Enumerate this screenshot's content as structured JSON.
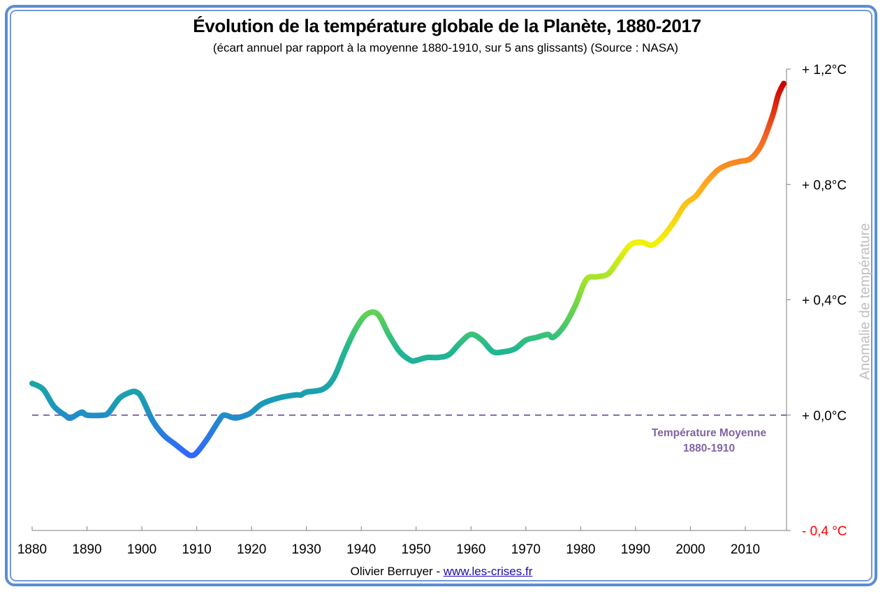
{
  "chart_data": {
    "type": "line",
    "title": "Évolution de la température globale de la Planète, 1880-2017",
    "subtitle": "(écart annuel par rapport à la moyenne 1880-1910, sur 5 ans glissants) (Source : NASA)",
    "xlabel": "",
    "ylabel": "Anomalie de température",
    "xlim": [
      1880,
      2017
    ],
    "ylim": [
      -0.4,
      1.2
    ],
    "grid": false,
    "x_ticks": [
      1880,
      1890,
      1900,
      1910,
      1920,
      1930,
      1940,
      1950,
      1960,
      1970,
      1980,
      1990,
      2000,
      2010
    ],
    "x_tick_labels": [
      "1880",
      "1890",
      "1900",
      "1910",
      "1920",
      "1930",
      "1940",
      "1950",
      "1960",
      "1970",
      "1980",
      "1990",
      "2000",
      "2010"
    ],
    "y_ticks": [
      {
        "value": 1.2,
        "label": "+ 1,2°C",
        "color": "#000000"
      },
      {
        "value": 0.8,
        "label": "+ 0,8°C",
        "color": "#000000"
      },
      {
        "value": 0.4,
        "label": "+ 0,4°C",
        "color": "#000000"
      },
      {
        "value": 0.0,
        "label": "+ 0,0°C",
        "color": "#000000"
      },
      {
        "value": -0.4,
        "label": "- 0,4 °C",
        "color": "#ff0000"
      }
    ],
    "y_axis_position": "right",
    "series": [
      {
        "name": "Anomalie de température (moyenne glissante 5 ans)",
        "color_scale": [
          "#3366ff",
          "#1a9bb5",
          "#21b890",
          "#7fdc3a",
          "#f2f20a",
          "#ffb020",
          "#f26522",
          "#cc0000"
        ],
        "x": [
          1880,
          1882,
          1884,
          1886,
          1887,
          1889,
          1890,
          1893,
          1894,
          1896,
          1898,
          1899,
          1900,
          1902,
          1904,
          1906,
          1908,
          1909,
          1910,
          1912,
          1914,
          1915,
          1917,
          1919,
          1920,
          1922,
          1925,
          1928,
          1929,
          1930,
          1933,
          1935,
          1937,
          1939,
          1941,
          1943,
          1945,
          1947,
          1949,
          1950,
          1952,
          1954,
          1956,
          1958,
          1960,
          1962,
          1964,
          1966,
          1968,
          1970,
          1972,
          1974,
          1975,
          1977,
          1979,
          1981,
          1983,
          1985,
          1987,
          1989,
          1991,
          1993,
          1995,
          1997,
          1999,
          2001,
          2003,
          2005,
          2007,
          2009,
          2011,
          2013,
          2015,
          2016,
          2017
        ],
        "values": [
          0.11,
          0.09,
          0.03,
          0.0,
          -0.01,
          0.01,
          0.0,
          0.0,
          0.01,
          0.06,
          0.08,
          0.08,
          0.06,
          -0.02,
          -0.07,
          -0.1,
          -0.13,
          -0.14,
          -0.13,
          -0.08,
          -0.02,
          0.0,
          -0.01,
          0.0,
          0.01,
          0.04,
          0.06,
          0.07,
          0.07,
          0.08,
          0.09,
          0.13,
          0.22,
          0.3,
          0.35,
          0.35,
          0.28,
          0.22,
          0.19,
          0.19,
          0.2,
          0.2,
          0.21,
          0.25,
          0.28,
          0.26,
          0.22,
          0.22,
          0.23,
          0.26,
          0.27,
          0.28,
          0.27,
          0.31,
          0.38,
          0.47,
          0.48,
          0.49,
          0.54,
          0.59,
          0.6,
          0.59,
          0.62,
          0.67,
          0.73,
          0.76,
          0.81,
          0.85,
          0.87,
          0.88,
          0.89,
          0.94,
          1.04,
          1.11,
          1.15
        ]
      }
    ],
    "reference_line": {
      "value": 0.0,
      "label_line1": "Température Moyenne",
      "label_line2": "1880-1910",
      "color": "#8064a2",
      "style": "dashed"
    }
  },
  "footer": {
    "author": "Olivier Berruyer",
    "separator": "-",
    "link_text": "www.les-crises.fr"
  },
  "colors": {
    "frame": "#5b8dd2",
    "axis": "#7f7f7f",
    "reference": "#8064a2",
    "ylabel": "#bfbfbf",
    "negative_tick": "#ff0000"
  }
}
